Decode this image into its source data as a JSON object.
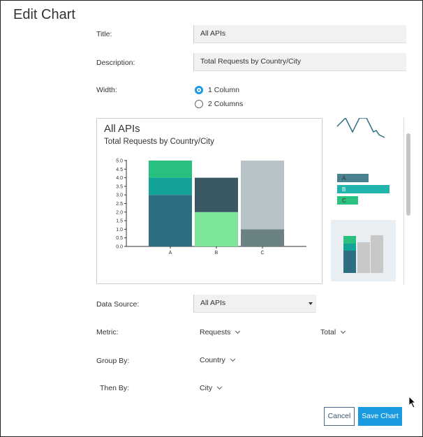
{
  "dialog": {
    "title": "Edit Chart"
  },
  "form": {
    "title_label": "Title:",
    "title_value": "All APIs",
    "description_label": "Description:",
    "description_value": "Total Requests by Country/City",
    "width_label": "Width:",
    "width_options": [
      {
        "label": "1 Column",
        "selected": true
      },
      {
        "label": "2 Columns",
        "selected": false
      }
    ],
    "data_source_label": "Data Source:",
    "data_source_value": "All APIs",
    "metric_label": "Metric:",
    "metric_value": "Requests",
    "metric_agg": "Total",
    "group_by_label": "Group By:",
    "group_by_value": "Country",
    "then_by_label": "Then By:",
    "then_by_value": "City"
  },
  "preview": {
    "title": "All APIs",
    "subtitle": "Total Requests by Country/City"
  },
  "chart_data": {
    "type": "bar",
    "stacked": true,
    "categories": [
      "A",
      "B",
      "C"
    ],
    "ylim": [
      0,
      5
    ],
    "yticks": [
      "0.0",
      "0.5",
      "1.0",
      "1.5",
      "2.0",
      "2.5",
      "3.0",
      "3.5",
      "4.0",
      "4.5",
      "5.0"
    ],
    "stacks": [
      [
        {
          "value": 3.0,
          "color": "#2d6e82"
        },
        {
          "value": 1.0,
          "color": "#13a39a"
        },
        {
          "value": 1.0,
          "color": "#28c07f"
        }
      ],
      [
        {
          "value": 2.0,
          "color": "#7ce598"
        },
        {
          "value": 2.0,
          "color": "#3a5963"
        }
      ],
      [
        {
          "value": 1.0,
          "color": "#6b8285"
        },
        {
          "value": 4.0,
          "color": "#b8c3c8"
        }
      ]
    ]
  },
  "chart_types": {
    "bar_thumb_labels": [
      "A",
      "B",
      "C"
    ]
  },
  "actions": {
    "cancel_label": "Cancel",
    "save_label": "Save Chart"
  },
  "colors": {
    "accent": "#1a9ae0"
  }
}
